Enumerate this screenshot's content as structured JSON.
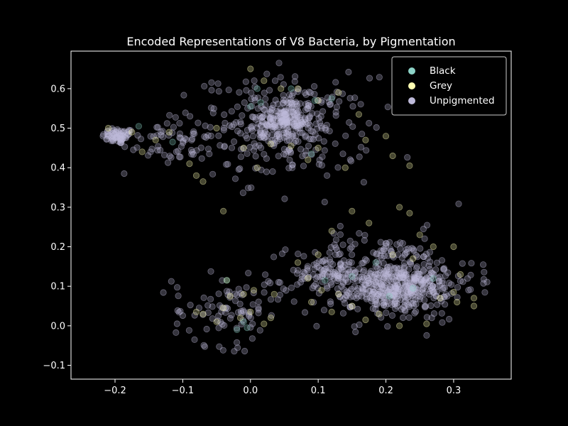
{
  "chart_data": {
    "type": "scatter",
    "title": "Encoded Representations of V8 Bacteria, by Pigmentation",
    "xlabel": "",
    "ylabel": "",
    "xlim": [
      -0.265,
      0.385
    ],
    "ylim": [
      -0.135,
      0.695
    ],
    "x_ticks": [
      -0.2,
      -0.1,
      0.0,
      0.1,
      0.2,
      0.3
    ],
    "x_tick_labels": [
      "−0.2",
      "−0.1",
      "0.0",
      "0.1",
      "0.2",
      "0.3"
    ],
    "y_ticks": [
      -0.1,
      0.0,
      0.1,
      0.2,
      0.3,
      0.4,
      0.5,
      0.6
    ],
    "y_tick_labels": [
      "−0.1",
      "0.0",
      "0.1",
      "0.2",
      "0.3",
      "0.4",
      "0.5",
      "0.6"
    ],
    "grid": false,
    "legend_position": "top-right",
    "background": "#000000",
    "series": [
      {
        "name": "Black",
        "color": "#8dd3c7",
        "points": [
          [
            -0.165,
            0.505
          ],
          [
            -0.115,
            0.465
          ],
          [
            0.01,
            0.6
          ],
          [
            0.0,
            0.555
          ],
          [
            0.015,
            0.565
          ],
          [
            0.06,
            0.6
          ],
          [
            0.09,
            0.435
          ],
          [
            0.095,
            0.57
          ],
          [
            0.12,
            0.575
          ],
          [
            0.11,
            0.115
          ],
          [
            0.15,
            0.125
          ],
          [
            0.185,
            0.16
          ],
          [
            0.205,
            0.075
          ],
          [
            0.27,
            0.12
          ],
          [
            0.24,
            0.095
          ],
          [
            -0.035,
            0.115
          ],
          [
            -0.01,
            0.01
          ],
          [
            -0.02,
            -0.01
          ],
          [
            -0.005,
            -0.005
          ]
        ]
      },
      {
        "name": "Grey",
        "color": "#ffffb3",
        "points": [
          [
            -0.21,
            0.5
          ],
          [
            -0.175,
            0.49
          ],
          [
            -0.16,
            0.44
          ],
          [
            -0.14,
            0.47
          ],
          [
            -0.12,
            0.49
          ],
          [
            -0.09,
            0.41
          ],
          [
            -0.08,
            0.38
          ],
          [
            -0.07,
            0.365
          ],
          [
            -0.04,
            0.29
          ],
          [
            -0.05,
            0.5
          ],
          [
            -0.01,
            0.45
          ],
          [
            0.0,
            0.65
          ],
          [
            0.02,
            0.62
          ],
          [
            0.045,
            0.6
          ],
          [
            0.07,
            0.6
          ],
          [
            0.1,
            0.57
          ],
          [
            0.13,
            0.59
          ],
          [
            0.16,
            0.535
          ],
          [
            0.1,
            0.45
          ],
          [
            0.14,
            0.4
          ],
          [
            0.17,
            0.47
          ],
          [
            0.2,
            0.48
          ],
          [
            0.21,
            0.43
          ],
          [
            0.235,
            0.405
          ],
          [
            0.03,
            0.46
          ],
          [
            0.01,
            0.4
          ],
          [
            0.06,
            0.455
          ],
          [
            0.085,
            0.42
          ],
          [
            0.1,
            0.18
          ],
          [
            0.12,
            0.24
          ],
          [
            0.15,
            0.29
          ],
          [
            0.175,
            0.26
          ],
          [
            0.22,
            0.3
          ],
          [
            0.235,
            0.285
          ],
          [
            0.25,
            0.23
          ],
          [
            0.27,
            0.2
          ],
          [
            0.3,
            0.2
          ],
          [
            0.31,
            0.13
          ],
          [
            0.305,
            0.06
          ],
          [
            0.3,
            0.085
          ],
          [
            0.28,
            0.07
          ],
          [
            0.26,
            0.005
          ],
          [
            0.22,
            0.0
          ],
          [
            0.19,
            0.03
          ],
          [
            0.17,
            0.015
          ],
          [
            0.15,
            0.05
          ],
          [
            0.13,
            0.08
          ],
          [
            0.105,
            0.09
          ],
          [
            0.085,
            0.12
          ],
          [
            0.07,
            0.16
          ],
          [
            0.09,
            0.06
          ],
          [
            0.12,
            0.035
          ],
          [
            0.33,
            0.05
          ],
          [
            0.33,
            0.07
          ],
          [
            0.21,
            0.18
          ],
          [
            0.24,
            0.17
          ],
          [
            -0.07,
            0.03
          ],
          [
            -0.05,
            0.01
          ],
          [
            -0.04,
            0.045
          ],
          [
            -0.03,
            0.075
          ],
          [
            -0.015,
            0.02
          ],
          [
            0.0,
            0.035
          ],
          [
            0.02,
            0.005
          ],
          [
            0.03,
            0.02
          ],
          [
            0.035,
            0.08
          ],
          [
            -0.08,
            0.035
          ],
          [
            -0.035,
            0.115
          ],
          [
            0.005,
            0.09
          ],
          [
            -0.01,
            0.08
          ]
        ]
      },
      {
        "name": "Unpigmented",
        "color": "#bebada",
        "clusters": [
          {
            "center": [
              -0.195,
              0.48
            ],
            "spread": [
              0.012,
              0.01
            ],
            "count": 70
          },
          {
            "center": [
              -0.14,
              0.465
            ],
            "spread": [
              0.025,
              0.03
            ],
            "count": 25
          },
          {
            "center": [
              0.05,
              0.52
            ],
            "spread": [
              0.022,
              0.03
            ],
            "count": 180
          },
          {
            "center": [
              0.05,
              0.5
            ],
            "spread": [
              0.065,
              0.065
            ],
            "count": 260
          },
          {
            "center": [
              0.22,
              0.095
            ],
            "spread": [
              0.035,
              0.025
            ],
            "count": 220
          },
          {
            "center": [
              0.2,
              0.12
            ],
            "spread": [
              0.065,
              0.055
            ],
            "count": 360
          },
          {
            "center": [
              0.12,
              0.14
            ],
            "spread": [
              0.025,
              0.015
            ],
            "count": 60
          },
          {
            "center": [
              -0.035,
              0.04
            ],
            "spread": [
              0.04,
              0.045
            ],
            "count": 90
          },
          {
            "center": [
              -0.09,
              0.48
            ],
            "spread": [
              0.03,
              0.045
            ],
            "count": 30
          }
        ]
      }
    ]
  }
}
